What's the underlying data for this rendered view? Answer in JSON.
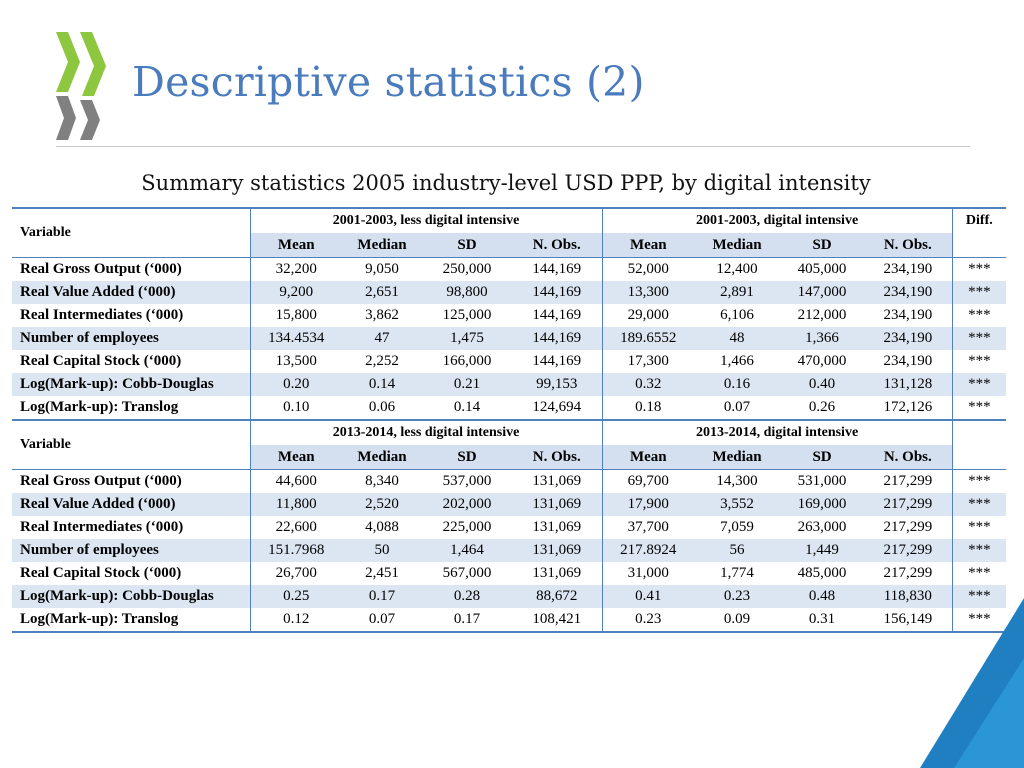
{
  "slide": {
    "title": "Descriptive statistics (2)",
    "subtitle": "Summary statistics 2005 industry-level USD PPP, by digital intensity",
    "accent_color": "#4a7bbd",
    "logo_color": "#8dc63f",
    "logo_shadow_color": "#808080",
    "corner_color": "#1f7fc1"
  },
  "table": {
    "section1": {
      "variable_header": "Variable",
      "group_less": "2001-2003, less digital intensive",
      "group_digital": "2001-2003, digital intensive",
      "diff_header": "Diff.",
      "sub_headers": [
        "Mean",
        "Median",
        "SD",
        "N. Obs.",
        "Mean",
        "Median",
        "SD",
        "N. Obs."
      ],
      "rows": [
        {
          "variable": "Real Gross Output (‘000)",
          "values": [
            "32,200",
            "9,050",
            "250,000",
            "144,169",
            "52,000",
            "12,400",
            "405,000",
            "234,190"
          ],
          "diff": "***"
        },
        {
          "variable": "Real Value Added (‘000)",
          "values": [
            "9,200",
            "2,651",
            "98,800",
            "144,169",
            "13,300",
            "2,891",
            "147,000",
            "234,190"
          ],
          "diff": "***"
        },
        {
          "variable": "Real Intermediates (‘000)",
          "values": [
            "15,800",
            "3,862",
            "125,000",
            "144,169",
            "29,000",
            "6,106",
            "212,000",
            "234,190"
          ],
          "diff": "***"
        },
        {
          "variable": "Number of employees",
          "values": [
            "134.4534",
            "47",
            "1,475",
            "144,169",
            "189.6552",
            "48",
            "1,366",
            "234,190"
          ],
          "diff": "***"
        },
        {
          "variable": "Real Capital Stock (‘000)",
          "values": [
            "13,500",
            "2,252",
            "166,000",
            "144,169",
            "17,300",
            "1,466",
            "470,000",
            "234,190"
          ],
          "diff": "***"
        },
        {
          "variable": "Log(Mark-up): Cobb-Douglas",
          "values": [
            "0.20",
            "0.14",
            "0.21",
            "99,153",
            "0.32",
            "0.16",
            "0.40",
            "131,128"
          ],
          "diff": "***"
        },
        {
          "variable": "Log(Mark-up): Translog",
          "values": [
            "0.10",
            "0.06",
            "0.14",
            "124,694",
            "0.18",
            "0.07",
            "0.26",
            "172,126"
          ],
          "diff": "***"
        }
      ]
    },
    "section2": {
      "variable_header": "Variable",
      "group_less": "2013-2014, less digital intensive",
      "group_digital": "2013-2014, digital intensive",
      "sub_headers": [
        "Mean",
        "Median",
        "SD",
        "N. Obs.",
        "Mean",
        "Median",
        "SD",
        "N. Obs."
      ],
      "rows": [
        {
          "variable": "Real Gross Output (‘000)",
          "values": [
            "44,600",
            "8,340",
            "537,000",
            "131,069",
            "69,700",
            "14,300",
            "531,000",
            "217,299"
          ],
          "diff": "***"
        },
        {
          "variable": "Real Value Added (‘000)",
          "values": [
            "11,800",
            "2,520",
            "202,000",
            "131,069",
            "17,900",
            "3,552",
            "169,000",
            "217,299"
          ],
          "diff": "***"
        },
        {
          "variable": "Real Intermediates (‘000)",
          "values": [
            "22,600",
            "4,088",
            "225,000",
            "131,069",
            "37,700",
            "7,059",
            "263,000",
            "217,299"
          ],
          "diff": "***"
        },
        {
          "variable": "Number of employees",
          "values": [
            "151.7968",
            "50",
            "1,464",
            "131,069",
            "217.8924",
            "56",
            "1,449",
            "217,299"
          ],
          "diff": "***"
        },
        {
          "variable": "Real Capital Stock (‘000)",
          "values": [
            "26,700",
            "2,451",
            "567,000",
            "131,069",
            "31,000",
            "1,774",
            "485,000",
            "217,299"
          ],
          "diff": "***"
        },
        {
          "variable": "Log(Mark-up): Cobb-Douglas",
          "values": [
            "0.25",
            "0.17",
            "0.28",
            "88,672",
            "0.41",
            "0.23",
            "0.48",
            "118,830"
          ],
          "diff": "***"
        },
        {
          "variable": "Log(Mark-up): Translog",
          "values": [
            "0.12",
            "0.07",
            "0.17",
            "108,421",
            "0.23",
            "0.09",
            "0.31",
            "156,149"
          ],
          "diff": "***"
        }
      ]
    }
  }
}
